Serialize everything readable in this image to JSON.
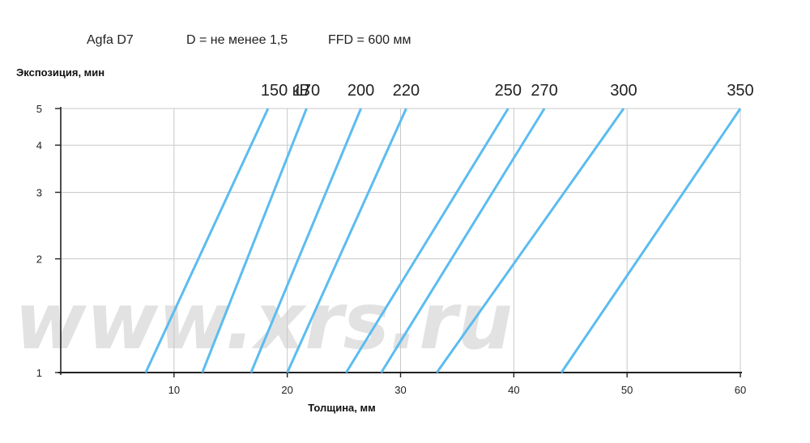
{
  "header": {
    "film": "Agfa D7",
    "density": "D = не менее 1,5",
    "ffd": "FFD = 600 мм"
  },
  "watermark": "www.xrs.ru",
  "chart_data": {
    "type": "line",
    "xlabel": "Толщина, мм",
    "ylabel": "Экспозиция, мин",
    "xlim": [
      0,
      60
    ],
    "ylim": [
      1,
      5
    ],
    "yscale": "log",
    "xticks": [
      10,
      20,
      30,
      40,
      50,
      60
    ],
    "yticks": [
      1,
      2,
      3,
      4,
      5
    ],
    "grid": true,
    "line_color": "#5bbcf0",
    "series": [
      {
        "name": "150 кВ",
        "x": [
          7.5,
          18.3
        ],
        "y": [
          1,
          5
        ]
      },
      {
        "name": "170",
        "x": [
          12.5,
          21.7
        ],
        "y": [
          1,
          5
        ]
      },
      {
        "name": "200",
        "x": [
          16.8,
          26.5
        ],
        "y": [
          1,
          5
        ]
      },
      {
        "name": "220",
        "x": [
          20.0,
          30.5
        ],
        "y": [
          1,
          5
        ]
      },
      {
        "name": "250",
        "x": [
          25.2,
          39.5
        ],
        "y": [
          1,
          5
        ]
      },
      {
        "name": "270",
        "x": [
          28.3,
          42.7
        ],
        "y": [
          1,
          5
        ]
      },
      {
        "name": "300",
        "x": [
          33.2,
          49.7
        ],
        "y": [
          1,
          5
        ]
      },
      {
        "name": "350",
        "x": [
          44.2,
          60.0
        ],
        "y": [
          1,
          5
        ]
      }
    ]
  }
}
